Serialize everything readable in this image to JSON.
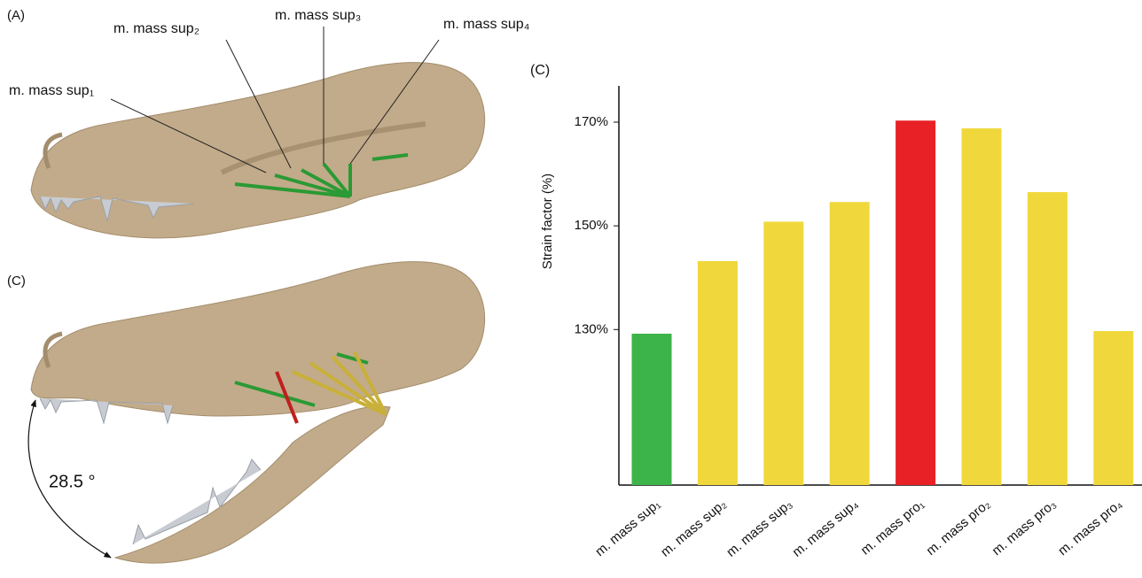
{
  "figure": {
    "panel_a": "(A)",
    "panel_c": "(C)",
    "angle": "28.5 °",
    "annotations": [
      "m. mass sup₁",
      "m. mass sup₂",
      "m. mass sup₃",
      "m. mass sup₄"
    ]
  },
  "chart_data": {
    "type": "bar",
    "panel_label": "(C)",
    "y_label": "Strain factor (%)",
    "categories": [
      "m. mass sup₁",
      "m. mass sup₂",
      "m. mass sup₃",
      "m. mass sup₄",
      "m. mass pro₁",
      "m. mass pro₂",
      "m. mass pro₃",
      "m. mass pro₄"
    ],
    "values": [
      129.2,
      143.2,
      150.8,
      154.6,
      170.3,
      168.8,
      156.5,
      129.7
    ],
    "colors": [
      "#3cb44a",
      "#f0d83c",
      "#f0d83c",
      "#f0d83c",
      "#e82127",
      "#f0d83c",
      "#f0d83c",
      "#f0d83c"
    ],
    "ylim": [
      100,
      177
    ],
    "yticks": [
      {
        "value": 130,
        "label": "130%"
      },
      {
        "value": 150,
        "label": "150%"
      },
      {
        "value": 170,
        "label": "170%"
      }
    ]
  }
}
